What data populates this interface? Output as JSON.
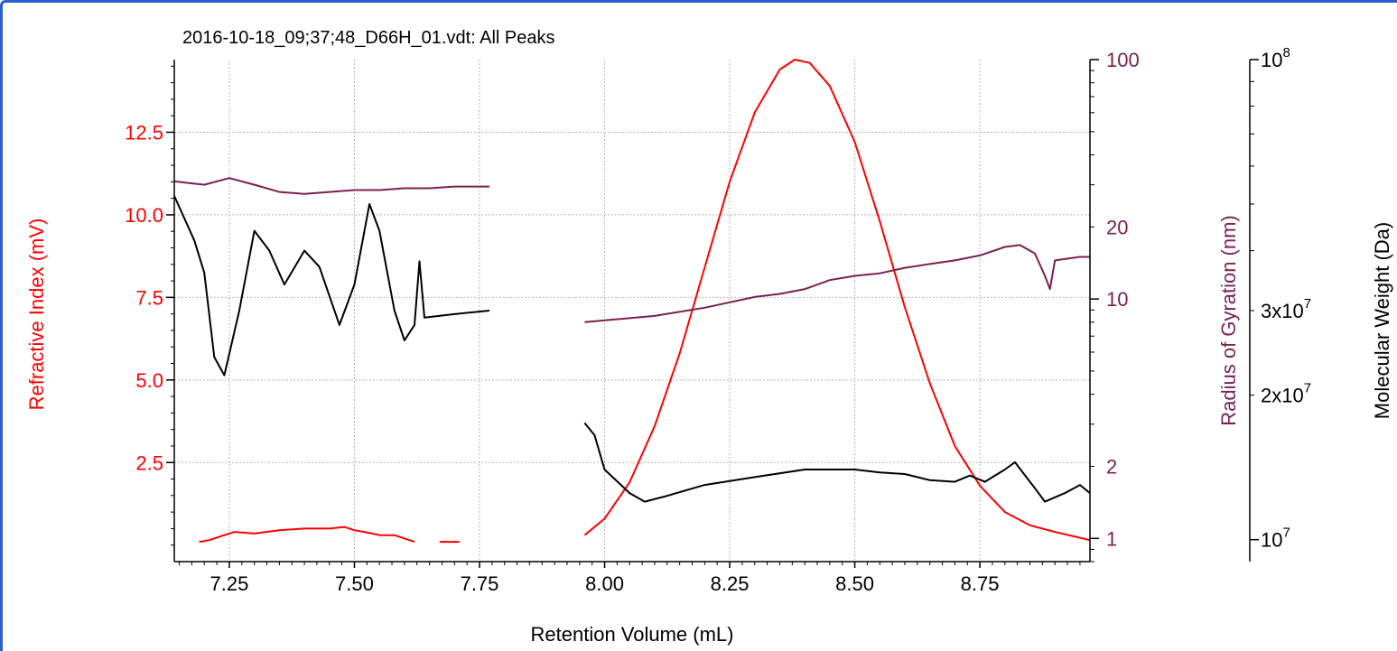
{
  "chart_data": {
    "type": "line",
    "title": "2016-10-18_09;37;48_D66H_01.vdt: All Peaks",
    "xlabel": "Retention Volume (mL)",
    "xlim": [
      7.14,
      8.97
    ],
    "x_ticks": [
      "7.25",
      "7.50",
      "7.75",
      "8.00",
      "8.25",
      "8.50",
      "8.75"
    ],
    "grid": true,
    "axes": {
      "left": {
        "label": "Refractive Index (mV)",
        "scale": "linear",
        "range": [
          -0.5,
          14.7
        ],
        "ticks": [
          "2.5",
          "5.0",
          "7.5",
          "10.0",
          "12.5"
        ],
        "color": "#ff0000"
      },
      "right1": {
        "label": "Radius of Gyration (nm)",
        "scale": "log",
        "range": [
          0.8,
          100
        ],
        "ticks": [
          "1",
          "2",
          "10",
          "20",
          "100"
        ],
        "color": "#7a2150"
      },
      "right2": {
        "label": "Molecular Weight (Da)",
        "scale": "log",
        "range": [
          9000000,
          100000000
        ],
        "ticks": [
          {
            "v": 100000000,
            "base": "10",
            "sup": "8"
          },
          {
            "v": 30000000,
            "base": "3x10",
            "sup": "7"
          },
          {
            "v": 20000000,
            "base": "2x10",
            "sup": "7"
          },
          {
            "v": 10000000,
            "base": "10",
            "sup": "7"
          }
        ],
        "color": "#000000"
      }
    },
    "series": [
      {
        "axis": "left",
        "color": "#ff0000",
        "segments": [
          [
            [
              7.19,
              0.1
            ],
            [
              7.21,
              0.15
            ],
            [
              7.24,
              0.3
            ],
            [
              7.26,
              0.4
            ],
            [
              7.3,
              0.35
            ],
            [
              7.35,
              0.45
            ],
            [
              7.4,
              0.5
            ],
            [
              7.45,
              0.5
            ],
            [
              7.48,
              0.55
            ],
            [
              7.5,
              0.45
            ],
            [
              7.52,
              0.4
            ],
            [
              7.55,
              0.3
            ],
            [
              7.58,
              0.3
            ],
            [
              7.6,
              0.2
            ],
            [
              7.62,
              0.1
            ]
          ],
          [
            [
              7.67,
              0.1
            ],
            [
              7.71,
              0.1
            ]
          ],
          [
            [
              7.96,
              0.3
            ],
            [
              8.0,
              0.8
            ],
            [
              8.05,
              1.9
            ],
            [
              8.1,
              3.6
            ],
            [
              8.15,
              5.8
            ],
            [
              8.2,
              8.4
            ],
            [
              8.25,
              11.0
            ],
            [
              8.3,
              13.1
            ],
            [
              8.35,
              14.4
            ],
            [
              8.38,
              14.7
            ],
            [
              8.41,
              14.6
            ],
            [
              8.45,
              13.9
            ],
            [
              8.5,
              12.2
            ],
            [
              8.55,
              9.8
            ],
            [
              8.6,
              7.2
            ],
            [
              8.65,
              4.9
            ],
            [
              8.7,
              3.0
            ],
            [
              8.75,
              1.8
            ],
            [
              8.8,
              1.0
            ],
            [
              8.85,
              0.6
            ],
            [
              8.9,
              0.4
            ],
            [
              8.97,
              0.15
            ]
          ]
        ]
      },
      {
        "axis": "right1",
        "color": "#7a2150",
        "segments": [
          [
            [
              7.14,
              31.0
            ],
            [
              7.2,
              30.0
            ],
            [
              7.25,
              32.0
            ],
            [
              7.3,
              30.0
            ],
            [
              7.35,
              28.0
            ],
            [
              7.4,
              27.5
            ],
            [
              7.45,
              28.0
            ],
            [
              7.5,
              28.5
            ],
            [
              7.55,
              28.5
            ],
            [
              7.6,
              29.0
            ],
            [
              7.65,
              29.0
            ],
            [
              7.7,
              29.5
            ],
            [
              7.77,
              29.5
            ]
          ],
          [
            [
              7.96,
              8.0
            ],
            [
              8.1,
              8.5
            ],
            [
              8.2,
              9.2
            ],
            [
              8.3,
              10.2
            ],
            [
              8.35,
              10.5
            ],
            [
              8.4,
              11.0
            ],
            [
              8.45,
              12.0
            ],
            [
              8.5,
              12.5
            ],
            [
              8.55,
              12.8
            ],
            [
              8.6,
              13.5
            ],
            [
              8.65,
              14.0
            ],
            [
              8.7,
              14.5
            ],
            [
              8.75,
              15.2
            ],
            [
              8.8,
              16.5
            ],
            [
              8.83,
              16.8
            ],
            [
              8.86,
              15.5
            ],
            [
              8.88,
              12.5
            ],
            [
              8.89,
              11.0
            ],
            [
              8.9,
              14.5
            ],
            [
              8.95,
              15.0
            ],
            [
              8.97,
              15.0
            ]
          ]
        ]
      },
      {
        "axis": "right2",
        "color": "#000000",
        "segments": [
          [
            [
              7.14,
              52000000
            ],
            [
              7.18,
              42000000
            ],
            [
              7.2,
              36000000
            ],
            [
              7.22,
              24000000
            ],
            [
              7.24,
              22000000
            ],
            [
              7.27,
              30000000
            ],
            [
              7.3,
              44000000
            ],
            [
              7.33,
              40000000
            ],
            [
              7.36,
              34000000
            ],
            [
              7.4,
              40000000
            ],
            [
              7.43,
              37000000
            ],
            [
              7.47,
              28000000
            ],
            [
              7.5,
              34000000
            ],
            [
              7.53,
              50000000
            ],
            [
              7.55,
              44000000
            ],
            [
              7.58,
              30000000
            ],
            [
              7.6,
              26000000
            ],
            [
              7.62,
              28000000
            ],
            [
              7.63,
              38000000
            ],
            [
              7.64,
              29000000
            ],
            [
              7.7,
              29500000
            ],
            [
              7.77,
              30000000
            ]
          ],
          [
            [
              7.96,
              17500000
            ],
            [
              7.98,
              16500000
            ],
            [
              8.0,
              14000000
            ],
            [
              8.05,
              12500000
            ],
            [
              8.08,
              12000000
            ],
            [
              8.12,
              12300000
            ],
            [
              8.2,
              13000000
            ],
            [
              8.3,
              13500000
            ],
            [
              8.4,
              14000000
            ],
            [
              8.5,
              14000000
            ],
            [
              8.55,
              13800000
            ],
            [
              8.6,
              13700000
            ],
            [
              8.65,
              13300000
            ],
            [
              8.7,
              13200000
            ],
            [
              8.73,
              13600000
            ],
            [
              8.76,
              13200000
            ],
            [
              8.8,
              14000000
            ],
            [
              8.82,
              14500000
            ],
            [
              8.86,
              12800000
            ],
            [
              8.88,
              12000000
            ],
            [
              8.92,
              12500000
            ],
            [
              8.95,
              13000000
            ],
            [
              8.97,
              12500000
            ]
          ]
        ]
      }
    ]
  }
}
